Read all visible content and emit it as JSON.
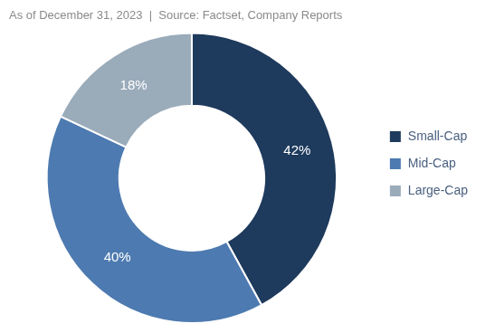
{
  "chart_data": {
    "type": "doughnut",
    "title": "As of December 31, 2023  |  Source: Factset, Company Reports",
    "categories": [
      "Small-Cap",
      "Mid-Cap",
      "Large-Cap"
    ],
    "values": [
      42,
      40,
      18
    ],
    "value_labels": [
      "42%",
      "40%",
      "18%"
    ],
    "colors": [
      "#1e3a5c",
      "#4d7ab0",
      "#9aabba"
    ],
    "data_labels": true,
    "legend": "right"
  }
}
